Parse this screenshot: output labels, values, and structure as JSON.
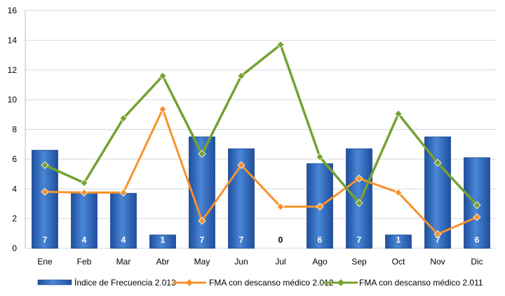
{
  "chart_data": {
    "type": "bar",
    "categories": [
      "Ene",
      "Feb",
      "Mar",
      "Abr",
      "May",
      "Jun",
      "Jul",
      "Ago",
      "Sep",
      "Oct",
      "Nov",
      "Dic"
    ],
    "ylim": [
      0,
      16
    ],
    "yticks": [
      "0",
      "2",
      "4",
      "6",
      "8",
      "10",
      "12",
      "14",
      "16"
    ],
    "grid": true,
    "legend_position": "bottom",
    "series": [
      {
        "name": "Índice de Frecuencia 2.013",
        "kind": "bar",
        "color": "#2f67b8",
        "values": [
          6.6,
          3.7,
          3.7,
          0.9,
          7.5,
          6.7,
          0,
          5.7,
          6.7,
          0.9,
          7.5,
          6.1
        ],
        "data_labels": [
          "7",
          "4",
          "4",
          "1",
          "7",
          "7",
          "0",
          "6",
          "7",
          "1",
          "7",
          "6"
        ]
      },
      {
        "name": "FMA con descanso médico 2.012",
        "kind": "line",
        "color": "#f7922b",
        "values": [
          3.8,
          3.75,
          3.75,
          9.35,
          1.85,
          5.6,
          2.8,
          2.8,
          4.7,
          3.75,
          0.95,
          2.1
        ]
      },
      {
        "name": "FMA con descanso médico 2.011",
        "kind": "line",
        "color": "#76a232",
        "values": [
          5.6,
          4.4,
          8.75,
          11.6,
          6.35,
          11.6,
          13.7,
          6.15,
          3.05,
          9.05,
          5.75,
          2.9
        ]
      }
    ]
  }
}
